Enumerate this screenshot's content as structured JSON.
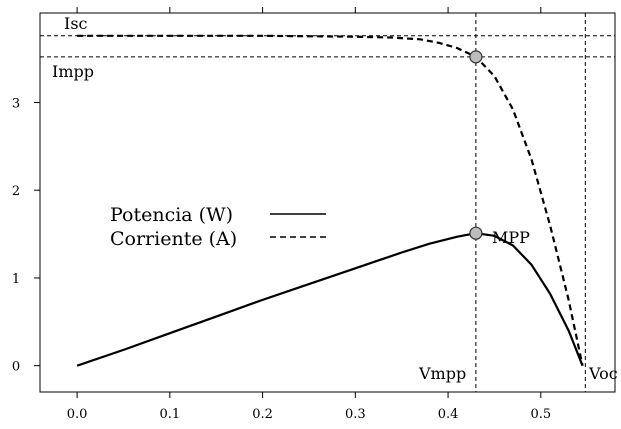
{
  "chart_data": {
    "type": "line",
    "title": "",
    "xlabel": "",
    "ylabel": "",
    "xlim": [
      -0.04,
      0.58
    ],
    "ylim": [
      -0.3,
      4.02
    ],
    "x_ticks": [
      0.0,
      0.1,
      0.2,
      0.3,
      0.4,
      0.5
    ],
    "x_tick_labels": [
      "0.0",
      "0.1",
      "0.2",
      "0.3",
      "0.4",
      "0.5"
    ],
    "y_ticks": [
      0,
      1,
      2,
      3
    ],
    "y_tick_labels": [
      "0",
      "1",
      "2",
      "3"
    ],
    "grid": false,
    "legend_position": "center-left",
    "series": [
      {
        "name": "Potencia (W)",
        "style": "solid",
        "x": [
          0.0,
          0.05,
          0.1,
          0.15,
          0.2,
          0.25,
          0.3,
          0.35,
          0.38,
          0.41,
          0.43,
          0.45,
          0.47,
          0.49,
          0.51,
          0.53,
          0.545
        ],
        "values": [
          0.0,
          0.18,
          0.37,
          0.56,
          0.75,
          0.93,
          1.11,
          1.29,
          1.39,
          1.47,
          1.51,
          1.48,
          1.37,
          1.15,
          0.82,
          0.4,
          0.0
        ]
      },
      {
        "name": "Corriente (A)",
        "style": "dashed",
        "x": [
          0.0,
          0.1,
          0.2,
          0.3,
          0.34,
          0.37,
          0.39,
          0.41,
          0.43,
          0.45,
          0.47,
          0.49,
          0.51,
          0.53,
          0.545
        ],
        "values": [
          3.76,
          3.76,
          3.76,
          3.75,
          3.74,
          3.72,
          3.68,
          3.62,
          3.52,
          3.3,
          2.92,
          2.35,
          1.6,
          0.75,
          0.0
        ]
      }
    ],
    "markers": [
      {
        "label": "MPP",
        "x": 0.43,
        "y": 1.51
      },
      {
        "label": "",
        "x": 0.43,
        "y": 3.52
      }
    ],
    "reference_lines": {
      "horizontal": [
        {
          "label": "Isc",
          "y": 3.76
        },
        {
          "label": "Impp",
          "y": 3.52
        }
      ],
      "vertical": [
        {
          "label": "Vmpp",
          "x": 0.43
        },
        {
          "label": "Voc",
          "x": 0.548
        }
      ]
    },
    "colors": {
      "line": "#000000",
      "marker_fill": "#bdbdbd",
      "marker_stroke": "#333333"
    }
  }
}
